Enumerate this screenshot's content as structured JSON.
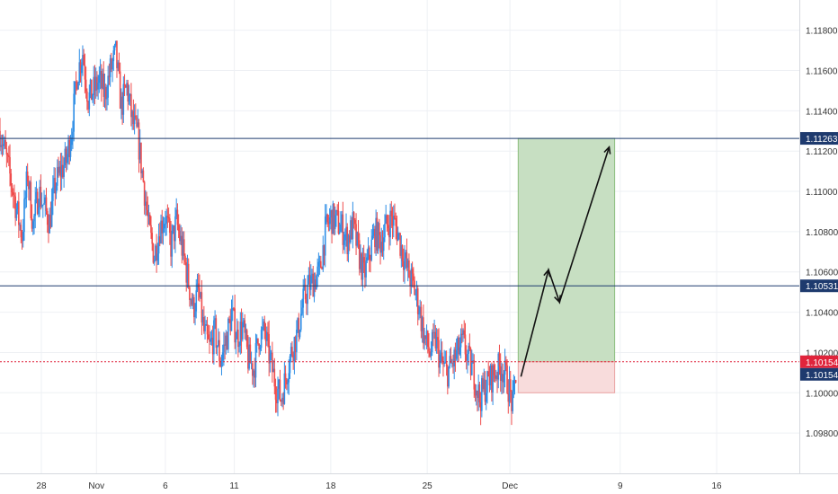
{
  "chart_data": {
    "type": "candlestick",
    "title": "",
    "ylim": [
      1.096,
      1.1195
    ],
    "y_ticks": [
      "1.11800",
      "1.11600",
      "1.11400",
      "1.11200",
      "1.11000",
      "1.10800",
      "1.10600",
      "1.10400",
      "1.10200",
      "1.10000",
      "1.09800"
    ],
    "y_tick_values": [
      1.118,
      1.116,
      1.114,
      1.112,
      1.11,
      1.108,
      1.106,
      1.104,
      1.102,
      1.1,
      1.098
    ],
    "x_ticks": [
      "28",
      "Nov",
      "6",
      "11",
      "18",
      "25",
      "Dec",
      "9",
      "16"
    ],
    "x_tick_days": [
      -4,
      0,
      5,
      10,
      17,
      24,
      30,
      38,
      45
    ],
    "x_range_days": [
      -7,
      51
    ],
    "series_close": [
      [
        -7,
        1.113
      ],
      [
        -6.6,
        1.1118
      ],
      [
        -6.2,
        1.1105
      ],
      [
        -5.8,
        1.1091
      ],
      [
        -5.4,
        1.1078
      ],
      [
        -5.0,
        1.1109
      ],
      [
        -4.6,
        1.1083
      ],
      [
        -4.2,
        1.11
      ],
      [
        -3.8,
        1.1092
      ],
      [
        -3.4,
        1.1085
      ],
      [
        -3.0,
        1.1103
      ],
      [
        -2.6,
        1.111
      ],
      [
        -2.2,
        1.1115
      ],
      [
        -1.8,
        1.1131
      ],
      [
        -1.4,
        1.1158
      ],
      [
        -1.0,
        1.1169
      ],
      [
        -0.6,
        1.1146
      ],
      [
        -0.2,
        1.115
      ],
      [
        0.2,
        1.1155
      ],
      [
        0.6,
        1.1148
      ],
      [
        1.0,
        1.116
      ],
      [
        1.4,
        1.1168
      ],
      [
        1.8,
        1.1142
      ],
      [
        2.2,
        1.1152
      ],
      [
        2.6,
        1.1135
      ],
      [
        3.0,
        1.1127
      ],
      [
        3.4,
        1.1105
      ],
      [
        3.8,
        1.1081
      ],
      [
        4.2,
        1.1068
      ],
      [
        4.6,
        1.1082
      ],
      [
        5.0,
        1.1088
      ],
      [
        5.4,
        1.1073
      ],
      [
        5.8,
        1.1085
      ],
      [
        6.2,
        1.1072
      ],
      [
        6.6,
        1.1058
      ],
      [
        7.0,
        1.1042
      ],
      [
        7.4,
        1.105
      ],
      [
        7.8,
        1.103
      ],
      [
        8.2,
        1.1022
      ],
      [
        8.6,
        1.103
      ],
      [
        9.0,
        1.1016
      ],
      [
        9.4,
        1.1026
      ],
      [
        9.8,
        1.1039
      ],
      [
        10.2,
        1.1028
      ],
      [
        10.6,
        1.1033
      ],
      [
        11.0,
        1.1017
      ],
      [
        11.4,
        1.1012
      ],
      [
        11.8,
        1.1028
      ],
      [
        12.2,
        1.103
      ],
      [
        12.6,
        1.1016
      ],
      [
        13.0,
        1.1004
      ],
      [
        13.4,
        1.0997
      ],
      [
        13.8,
        1.101
      ],
      [
        14.2,
        1.1022
      ],
      [
        14.6,
        1.103
      ],
      [
        15.0,
        1.1045
      ],
      [
        15.4,
        1.1053
      ],
      [
        15.8,
        1.1056
      ],
      [
        16.2,
        1.106
      ],
      [
        16.6,
        1.108
      ],
      [
        17.0,
        1.1087
      ],
      [
        17.4,
        1.1085
      ],
      [
        17.8,
        1.1082
      ],
      [
        18.2,
        1.1076
      ],
      [
        18.6,
        1.1083
      ],
      [
        19.0,
        1.107
      ],
      [
        19.4,
        1.1058
      ],
      [
        19.8,
        1.1068
      ],
      [
        20.2,
        1.108
      ],
      [
        20.6,
        1.1075
      ],
      [
        21.0,
        1.1082
      ],
      [
        21.4,
        1.1087
      ],
      [
        21.8,
        1.1081
      ],
      [
        22.2,
        1.107
      ],
      [
        22.6,
        1.106
      ],
      [
        23.0,
        1.1053
      ],
      [
        23.4,
        1.1043
      ],
      [
        23.8,
        1.1027
      ],
      [
        24.2,
        1.102
      ],
      [
        24.6,
        1.1026
      ],
      [
        25.0,
        1.1015
      ],
      [
        25.4,
        1.101
      ],
      [
        25.8,
        1.1014
      ],
      [
        26.2,
        1.102
      ],
      [
        26.6,
        1.1025
      ],
      [
        27.0,
        1.1016
      ],
      [
        27.4,
        1.1009
      ],
      [
        27.8,
        1.0997
      ],
      [
        28.2,
        1.1003
      ],
      [
        28.6,
        1.1007
      ],
      [
        29.0,
        1.1011
      ],
      [
        29.4,
        1.1013
      ],
      [
        29.8,
        1.1006
      ],
      [
        30.2,
        1.0993
      ],
      [
        30.5,
        1.1015
      ]
    ],
    "levels": [
      {
        "label": "1.11263",
        "value": 1.11263,
        "color": "#1e3a6e"
      },
      {
        "label": "1.10531",
        "value": 1.10531,
        "color": "#1e3a6e"
      },
      {
        "label": "1.10154",
        "value": 1.10154,
        "color": "#e0243b"
      },
      {
        "label": "1.10154",
        "value": 1.10154,
        "color": "#1e3a6e"
      }
    ],
    "long_position": {
      "entry": 1.10154,
      "target": 1.11263,
      "stop": 1.1,
      "day_start": 30.6,
      "day_end": 37.6
    },
    "projection_path": [
      [
        30.8,
        1.1008
      ],
      [
        32.8,
        1.1061
      ],
      [
        33.6,
        1.1045
      ],
      [
        37.2,
        1.1122
      ]
    ],
    "colors": {
      "up": "#2e8ee6",
      "down": "#ef4c4c",
      "grid": "#eef0f4",
      "axis_text": "#333333",
      "profit_fill": "#c7dfc2",
      "profit_border": "#8cbf7e",
      "loss_fill": "#f8dcdc",
      "loss_border": "#e9a3a3"
    }
  }
}
